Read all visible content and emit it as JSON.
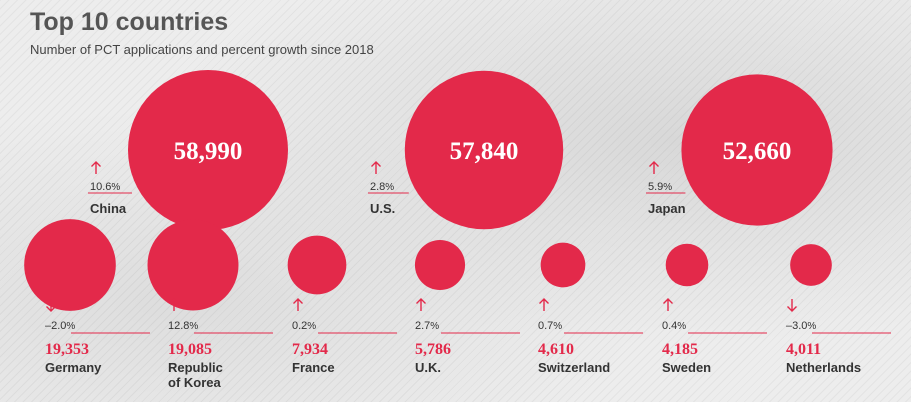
{
  "header": {
    "title": "Top 10 countries",
    "subtitle": "Number of PCT applications and percent growth since 2018"
  },
  "colors": {
    "bubble": "#e3294a",
    "text": "#333333",
    "title": "#555555"
  },
  "chart_data": {
    "type": "bubble",
    "title": "Top 10 countries",
    "subtitle": "Number of PCT applications and percent growth since 2018",
    "countries": [
      {
        "name": "China",
        "label_lines": [
          "China"
        ],
        "value": 58990,
        "value_label": "58,990",
        "growth": 10.6,
        "growth_label": "10.6",
        "direction": "up"
      },
      {
        "name": "U.S.",
        "label_lines": [
          "U.S."
        ],
        "value": 57840,
        "value_label": "57,840",
        "growth": 2.8,
        "growth_label": "2.8",
        "direction": "up"
      },
      {
        "name": "Japan",
        "label_lines": [
          "Japan"
        ],
        "value": 52660,
        "value_label": "52,660",
        "growth": 5.9,
        "growth_label": "5.9",
        "direction": "up"
      },
      {
        "name": "Germany",
        "label_lines": [
          "Germany"
        ],
        "value": 19353,
        "value_label": "19,353",
        "growth": -2.0,
        "growth_label": "–2.0",
        "direction": "down"
      },
      {
        "name": "Republic of Korea",
        "label_lines": [
          "Republic",
          "of Korea"
        ],
        "value": 19085,
        "value_label": "19,085",
        "growth": 12.8,
        "growth_label": "12.8",
        "direction": "up"
      },
      {
        "name": "France",
        "label_lines": [
          "France"
        ],
        "value": 7934,
        "value_label": "7,934",
        "growth": 0.2,
        "growth_label": "0.2",
        "direction": "up"
      },
      {
        "name": "U.K.",
        "label_lines": [
          "U.K."
        ],
        "value": 5786,
        "value_label": "5,786",
        "growth": 2.7,
        "growth_label": "2.7",
        "direction": "up"
      },
      {
        "name": "Switzerland",
        "label_lines": [
          "Switzerland"
        ],
        "value": 4610,
        "value_label": "4,610",
        "growth": 0.7,
        "growth_label": "0.7",
        "direction": "up"
      },
      {
        "name": "Sweden",
        "label_lines": [
          "Sweden"
        ],
        "value": 4185,
        "value_label": "4,185",
        "growth": 0.4,
        "growth_label": "0.4",
        "direction": "up"
      },
      {
        "name": "Netherlands",
        "label_lines": [
          "Netherlands"
        ],
        "value": 4011,
        "value_label": "4,011",
        "growth": -3.0,
        "growth_label": "–3.0",
        "direction": "down"
      }
    ],
    "percent_symbol": "%"
  }
}
